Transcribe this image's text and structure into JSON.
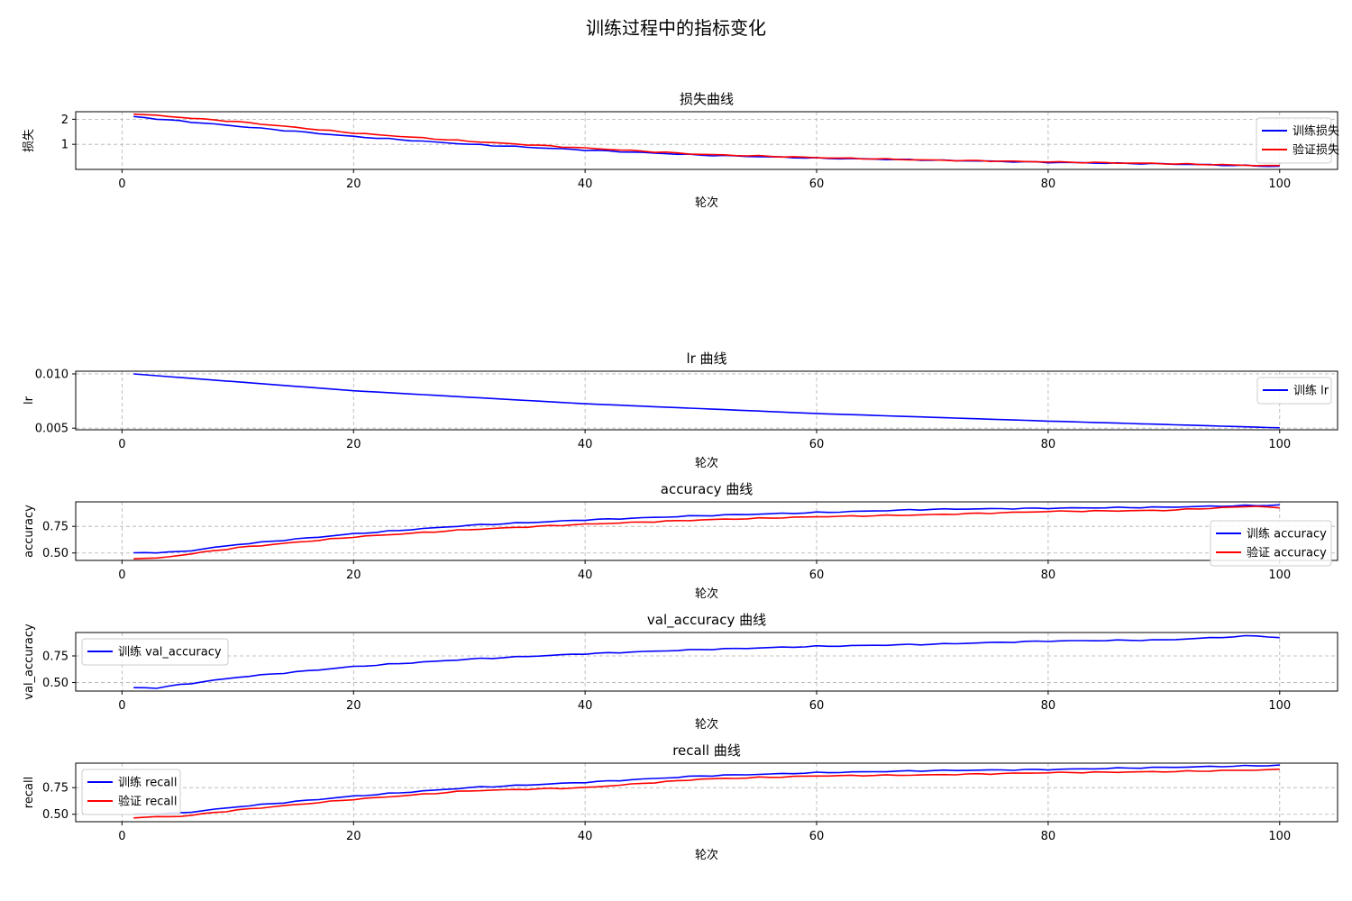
{
  "figure": {
    "title": "训练过程中的指标变化"
  },
  "colors": {
    "train": "#0000ff",
    "val": "#ff0000",
    "grid": "#b0b0b0",
    "axis": "#000000"
  },
  "chart_data": [
    {
      "type": "line",
      "title": "损失曲线",
      "xlabel": "轮次",
      "ylabel": "损失",
      "xlim": [
        -4,
        105
      ],
      "ylim": [
        0.0,
        2.3
      ],
      "xticks": [
        0,
        20,
        40,
        60,
        80,
        100
      ],
      "yticks": [
        1,
        2
      ],
      "ytick_labels": [
        "1",
        "2"
      ],
      "grid": true,
      "legend_position": "right",
      "series": [
        {
          "name": "训练损失",
          "color": "train",
          "anchors": [
            [
              1,
              2.1
            ],
            [
              10,
              1.72
            ],
            [
              20,
              1.31
            ],
            [
              30,
              1.0
            ],
            [
              40,
              0.77
            ],
            [
              50,
              0.57
            ],
            [
              60,
              0.45
            ],
            [
              70,
              0.37
            ],
            [
              80,
              0.28
            ],
            [
              90,
              0.22
            ],
            [
              100,
              0.12
            ]
          ]
        },
        {
          "name": "验证损失",
          "color": "val",
          "anchors": [
            [
              1,
              2.22
            ],
            [
              10,
              1.9
            ],
            [
              20,
              1.45
            ],
            [
              30,
              1.12
            ],
            [
              40,
              0.85
            ],
            [
              50,
              0.6
            ],
            [
              60,
              0.47
            ],
            [
              70,
              0.37
            ],
            [
              80,
              0.3
            ],
            [
              90,
              0.23
            ],
            [
              100,
              0.14
            ]
          ]
        }
      ]
    },
    {
      "type": "line",
      "title": "lr 曲线",
      "xlabel": "轮次",
      "ylabel": "lr",
      "xlim": [
        -4,
        105
      ],
      "ylim": [
        0.00485,
        0.01025
      ],
      "xticks": [
        0,
        20,
        40,
        60,
        80,
        100
      ],
      "yticks": [
        0.005,
        0.01
      ],
      "ytick_labels": [
        "0.005",
        "0.010"
      ],
      "grid": true,
      "legend_position": "upper right",
      "series": [
        {
          "name": "训练 lr",
          "color": "train",
          "anchors": [
            [
              1,
              0.01
            ],
            [
              20,
              0.00845
            ],
            [
              40,
              0.00725
            ],
            [
              60,
              0.00635
            ],
            [
              80,
              0.00565
            ],
            [
              100,
              0.00503
            ]
          ]
        }
      ]
    },
    {
      "type": "line",
      "title": "accuracy 曲线",
      "xlabel": "轮次",
      "ylabel": "accuracy",
      "xlim": [
        -4,
        105
      ],
      "ylim": [
        0.43,
        0.98
      ],
      "xticks": [
        0,
        20,
        40,
        60,
        80,
        100
      ],
      "yticks": [
        0.5,
        0.75
      ],
      "ytick_labels": [
        "0.50",
        "0.75"
      ],
      "grid": true,
      "legend_position": "lower right",
      "series": [
        {
          "name": "训练 accuracy",
          "color": "train",
          "anchors": [
            [
              1,
              0.5
            ],
            [
              5,
              0.51
            ],
            [
              10,
              0.58
            ],
            [
              20,
              0.68
            ],
            [
              30,
              0.76
            ],
            [
              40,
              0.81
            ],
            [
              50,
              0.85
            ],
            [
              60,
              0.88
            ],
            [
              70,
              0.91
            ],
            [
              80,
              0.92
            ],
            [
              90,
              0.93
            ],
            [
              100,
              0.95
            ]
          ]
        },
        {
          "name": "验证 accuracy",
          "color": "val",
          "anchors": [
            [
              1,
              0.45
            ],
            [
              3,
              0.45
            ],
            [
              10,
              0.55
            ],
            [
              20,
              0.65
            ],
            [
              30,
              0.72
            ],
            [
              40,
              0.77
            ],
            [
              50,
              0.81
            ],
            [
              60,
              0.84
            ],
            [
              70,
              0.86
            ],
            [
              80,
              0.89
            ],
            [
              90,
              0.9
            ],
            [
              98,
              0.94
            ],
            [
              100,
              0.92
            ]
          ]
        }
      ]
    },
    {
      "type": "line",
      "title": "val_accuracy 曲线",
      "xlabel": "轮次",
      "ylabel": "val_accuracy",
      "xlim": [
        -4,
        105
      ],
      "ylim": [
        0.42,
        0.97
      ],
      "xticks": [
        0,
        20,
        40,
        60,
        80,
        100
      ],
      "yticks": [
        0.5,
        0.75
      ],
      "ytick_labels": [
        "0.50",
        "0.75"
      ],
      "grid": true,
      "legend_position": "upper left",
      "series": [
        {
          "name": "训练 val_accuracy",
          "color": "train",
          "anchors": [
            [
              1,
              0.45
            ],
            [
              3,
              0.45
            ],
            [
              10,
              0.55
            ],
            [
              20,
              0.65
            ],
            [
              30,
              0.72
            ],
            [
              40,
              0.77
            ],
            [
              50,
              0.81
            ],
            [
              60,
              0.84
            ],
            [
              70,
              0.86
            ],
            [
              80,
              0.89
            ],
            [
              90,
              0.9
            ],
            [
              98,
              0.94
            ],
            [
              100,
              0.92
            ]
          ]
        }
      ]
    },
    {
      "type": "line",
      "title": "recall 曲线",
      "xlabel": "轮次",
      "ylabel": "recall",
      "xlim": [
        -4,
        105
      ],
      "ylim": [
        0.43,
        0.98
      ],
      "xticks": [
        0,
        20,
        40,
        60,
        80,
        100
      ],
      "yticks": [
        0.5,
        0.75
      ],
      "ytick_labels": [
        "0.50",
        "0.75"
      ],
      "grid": true,
      "legend_position": "upper left",
      "series": [
        {
          "name": "训练 recall",
          "color": "train",
          "anchors": [
            [
              1,
              0.5
            ],
            [
              5,
              0.51
            ],
            [
              10,
              0.57
            ],
            [
              20,
              0.67
            ],
            [
              30,
              0.75
            ],
            [
              40,
              0.8
            ],
            [
              50,
              0.86
            ],
            [
              60,
              0.89
            ],
            [
              70,
              0.91
            ],
            [
              80,
              0.92
            ],
            [
              90,
              0.94
            ],
            [
              100,
              0.96
            ]
          ]
        },
        {
          "name": "验证 recall",
          "color": "val",
          "anchors": [
            [
              1,
              0.47
            ],
            [
              5,
              0.48
            ],
            [
              10,
              0.54
            ],
            [
              20,
              0.64
            ],
            [
              30,
              0.72
            ],
            [
              40,
              0.75
            ],
            [
              50,
              0.83
            ],
            [
              60,
              0.86
            ],
            [
              70,
              0.87
            ],
            [
              80,
              0.89
            ],
            [
              90,
              0.9
            ],
            [
              100,
              0.92
            ]
          ]
        }
      ]
    }
  ]
}
